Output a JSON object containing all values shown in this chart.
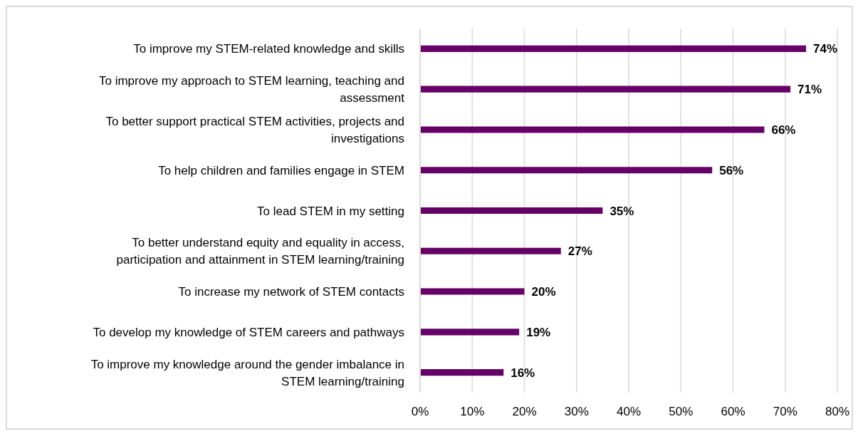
{
  "chart_data": {
    "type": "bar",
    "orientation": "horizontal",
    "categories": [
      "To improve my STEM-related knowledge and skills",
      "To improve my approach to STEM learning, teaching and assessment",
      "To better support practical STEM activities, projects and investigations",
      "To help children and families engage in STEM",
      "To lead STEM in my setting",
      "To better understand equity and equality in access, participation and attainment in STEM learning/training",
      "To increase my network of STEM contacts",
      "To develop my knowledge of STEM careers and pathways",
      "To improve my knowledge around the gender imbalance in STEM learning/training"
    ],
    "values": [
      74,
      71,
      66,
      56,
      35,
      27,
      20,
      19,
      16
    ],
    "value_labels": [
      "74%",
      "71%",
      "66%",
      "56%",
      "35%",
      "27%",
      "20%",
      "19%",
      "16%"
    ],
    "color": "#660066",
    "xlim": [
      0,
      80
    ],
    "xticks": [
      {
        "value": 0,
        "label": "0%"
      },
      {
        "value": 10,
        "label": "10%"
      },
      {
        "value": 20,
        "label": "20%"
      },
      {
        "value": 30,
        "label": "30%"
      },
      {
        "value": 40,
        "label": "40%"
      },
      {
        "value": 50,
        "label": "50%"
      },
      {
        "value": 60,
        "label": "60%"
      },
      {
        "value": 70,
        "label": "70%"
      },
      {
        "value": 80,
        "label": "80%"
      }
    ],
    "grid": "x"
  }
}
